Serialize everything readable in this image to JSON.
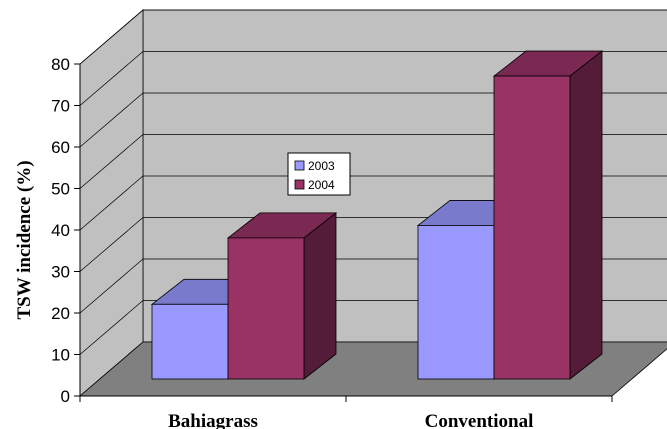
{
  "chart_data": {
    "type": "bar",
    "title": "",
    "xlabel": "",
    "ylabel": "TSW incidence (%)",
    "categories": [
      "Bahiagrass",
      "Conventional"
    ],
    "series": [
      {
        "name": "2003",
        "values": [
          18,
          37
        ],
        "color": "#9999ff"
      },
      {
        "name": "2004",
        "values": [
          34,
          73
        ],
        "color": "#993366"
      }
    ],
    "ylim": [
      0,
      80
    ],
    "yticks": [
      "0",
      "10",
      "20",
      "30",
      "40",
      "50",
      "60",
      "70",
      "80"
    ],
    "grid": true,
    "style": "3d",
    "legend_position": "center"
  }
}
